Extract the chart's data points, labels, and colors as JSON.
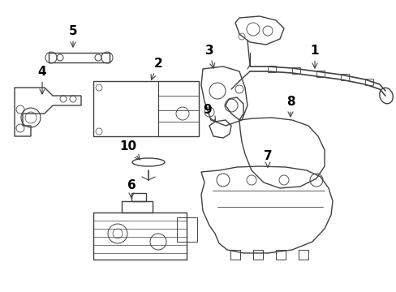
{
  "bg_color": "#ffffff",
  "line_color": "#404040",
  "label_color": "#000000",
  "figsize": [
    4.89,
    3.6
  ],
  "dpi": 100,
  "label_fontsize": 11,
  "arrow_lw": 0.8,
  "part_lw": 1.0
}
